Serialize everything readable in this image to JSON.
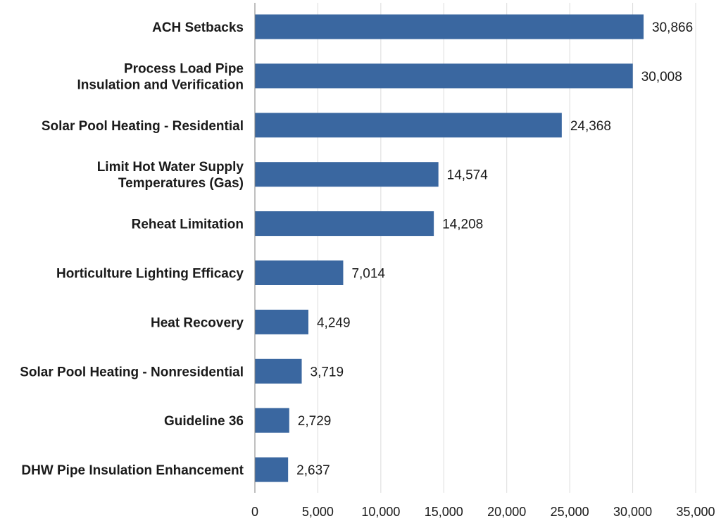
{
  "chart_data": {
    "type": "bar",
    "orientation": "horizontal",
    "title": "",
    "xlabel": "",
    "ylabel": "",
    "xlim": [
      0,
      35000
    ],
    "x_ticks": [
      0,
      5000,
      10000,
      15000,
      20000,
      25000,
      30000,
      35000
    ],
    "x_tick_labels": [
      "0",
      "5,000",
      "10,000",
      "15,000",
      "20,000",
      "25,000",
      "30,000",
      "35,000"
    ],
    "grid": true,
    "bar_color": "#3a67a0",
    "categories": [
      [
        "ACH Setbacks"
      ],
      [
        "Process Load Pipe",
        "Insulation and Verification"
      ],
      [
        "Solar Pool Heating - Residential"
      ],
      [
        "Limit Hot Water Supply",
        "Temperatures (Gas)"
      ],
      [
        "Reheat Limitation"
      ],
      [
        "Horticulture Lighting Efficacy"
      ],
      [
        "Heat Recovery"
      ],
      [
        "Solar Pool Heating - Nonresidential"
      ],
      [
        "Guideline 36"
      ],
      [
        "DHW Pipe Insulation Enhancement"
      ]
    ],
    "values": [
      30866,
      30008,
      24368,
      14574,
      14208,
      7014,
      4249,
      3719,
      2729,
      2637
    ],
    "value_labels": [
      "30,866",
      "30,008",
      "24,368",
      "14,574",
      "14,208",
      "7,014",
      "4,249",
      "3,719",
      "2,729",
      "2,637"
    ]
  }
}
